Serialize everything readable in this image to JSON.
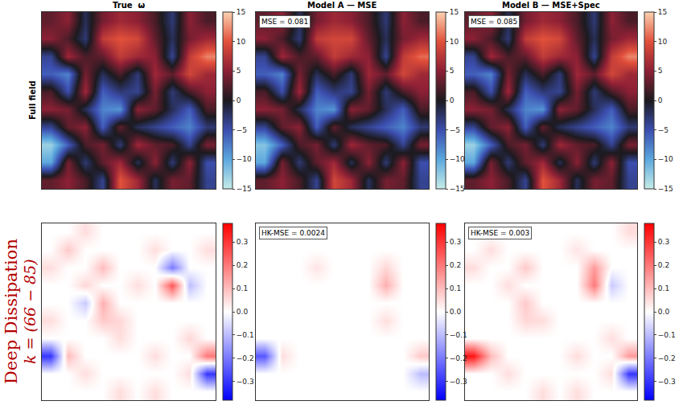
{
  "chart_data": [
    {
      "type": "heatmap",
      "title": "True  ω",
      "row_label": "Full field",
      "tick_labels": false,
      "color_range": [
        -15,
        15
      ],
      "color_ticks": [
        {
          "value": -15,
          "label": "−15"
        },
        {
          "value": -10,
          "label": "−10"
        },
        {
          "value": -5,
          "label": "−5"
        },
        0,
        5,
        10,
        15
      ],
      "cells": [
        [
          3,
          5,
          -2,
          4,
          6,
          5,
          2,
          -3,
          5,
          2
        ],
        [
          5,
          2,
          -3,
          8,
          10,
          9,
          3,
          -2,
          4,
          6
        ],
        [
          -4,
          6,
          2,
          3,
          8,
          6,
          5,
          -4,
          8,
          12
        ],
        [
          -6,
          -8,
          4,
          -2,
          2,
          -3,
          6,
          3,
          9,
          6
        ],
        [
          2,
          -5,
          6,
          -6,
          -3,
          -4,
          4,
          -3,
          2,
          5
        ],
        [
          5,
          4,
          -2,
          -8,
          -9,
          5,
          3,
          -2,
          -6,
          2
        ],
        [
          -4,
          3,
          5,
          -6,
          3,
          -2,
          -4,
          -6,
          -8,
          -3
        ],
        [
          -13,
          -6,
          2,
          4,
          -3,
          6,
          3,
          2,
          -4,
          4
        ],
        [
          -10,
          4,
          -3,
          3,
          6,
          -2,
          5,
          -3,
          5,
          -5
        ],
        [
          3,
          5,
          2,
          -4,
          10,
          6,
          -2,
          4,
          3,
          -4
        ]
      ]
    },
    {
      "type": "heatmap",
      "title": "Model A — MSE",
      "annotation": "MSE = 0.081",
      "tick_labels": false,
      "color_range": [
        -15,
        15
      ],
      "color_ticks": [
        {
          "value": -15,
          "label": "−15"
        },
        {
          "value": -10,
          "label": "−10"
        },
        {
          "value": -5,
          "label": "−5"
        },
        0,
        5,
        10,
        15
      ],
      "cells": [
        [
          3,
          5,
          -2,
          4,
          6,
          5,
          2,
          -3,
          5,
          2
        ],
        [
          5,
          2,
          -3,
          8,
          9,
          9,
          3,
          -2,
          4,
          6
        ],
        [
          -4,
          6,
          2,
          3,
          8,
          6,
          5,
          -4,
          8,
          11
        ],
        [
          -6,
          -8,
          4,
          -2,
          2,
          -3,
          6,
          3,
          9,
          6
        ],
        [
          2,
          -5,
          6,
          -6,
          -3,
          -4,
          4,
          -3,
          2,
          5
        ],
        [
          5,
          4,
          -2,
          -8,
          -9,
          5,
          3,
          -2,
          -6,
          2
        ],
        [
          -4,
          3,
          5,
          -6,
          3,
          -2,
          -4,
          -6,
          -8,
          -3
        ],
        [
          -12,
          -6,
          2,
          4,
          -3,
          6,
          3,
          2,
          -4,
          4
        ],
        [
          -10,
          4,
          -3,
          3,
          6,
          -2,
          5,
          -3,
          5,
          -5
        ],
        [
          3,
          5,
          2,
          -4,
          9,
          6,
          -2,
          4,
          3,
          -4
        ]
      ]
    },
    {
      "type": "heatmap",
      "title": "Model B — MSE+Spec",
      "annotation": "MSE = 0.085",
      "tick_labels": false,
      "color_range": [
        -15,
        15
      ],
      "color_ticks": [
        {
          "value": -15,
          "label": "−15"
        },
        {
          "value": -10,
          "label": "−10"
        },
        {
          "value": -5,
          "label": "−5"
        },
        0,
        5,
        10,
        15
      ],
      "cells": [
        [
          3,
          5,
          -2,
          4,
          6,
          5,
          2,
          -3,
          5,
          2
        ],
        [
          5,
          2,
          -3,
          8,
          10,
          9,
          3,
          -2,
          4,
          6
        ],
        [
          -4,
          6,
          2,
          3,
          8,
          6,
          5,
          -4,
          8,
          12
        ],
        [
          -6,
          -8,
          4,
          -2,
          2,
          -3,
          6,
          3,
          9,
          6
        ],
        [
          2,
          -5,
          6,
          -6,
          -3,
          -4,
          4,
          -3,
          2,
          5
        ],
        [
          5,
          4,
          -2,
          -8,
          -9,
          5,
          3,
          -2,
          -6,
          2
        ],
        [
          -4,
          3,
          5,
          -6,
          3,
          -2,
          -4,
          -6,
          -8,
          -3
        ],
        [
          -13,
          -6,
          2,
          4,
          -3,
          6,
          3,
          2,
          -4,
          4
        ],
        [
          -10,
          4,
          -3,
          3,
          6,
          -2,
          5,
          -3,
          5,
          -5
        ],
        [
          3,
          5,
          2,
          -4,
          10,
          6,
          -2,
          4,
          3,
          -4
        ]
      ]
    },
    {
      "type": "heatmap",
      "row_label": [
        "Deep Dissipation",
        "k = (66 − 85)"
      ],
      "tick_labels": false,
      "color_range": [
        -0.38,
        0.38
      ],
      "color_ticks": [
        {
          "value": -0.3,
          "label": "−0.3"
        },
        {
          "value": -0.2,
          "label": "−0.2"
        },
        {
          "value": -0.1,
          "label": "−0.1"
        },
        {
          "value": 0,
          "label": "0.0"
        },
        0.1,
        0.2,
        0.3
      ],
      "cells": [
        [
          0,
          0,
          0.05,
          0,
          0,
          0,
          0,
          0,
          0,
          0
        ],
        [
          0,
          0.08,
          0,
          0,
          0,
          0,
          0.05,
          0,
          0,
          0.05
        ],
        [
          0.05,
          0,
          0,
          0.1,
          0,
          0,
          0,
          -0.2,
          0,
          0
        ],
        [
          0,
          0,
          0.06,
          0,
          0,
          0.05,
          0,
          0.25,
          -0.1,
          0
        ],
        [
          0,
          0,
          -0.08,
          0.12,
          0,
          0,
          0,
          0,
          0,
          0
        ],
        [
          0.05,
          0,
          0,
          0.08,
          0.06,
          0,
          0,
          0,
          0,
          0
        ],
        [
          0,
          0,
          0,
          0,
          0.05,
          0,
          0,
          0,
          0.06,
          0
        ],
        [
          -0.3,
          0.1,
          0,
          0,
          0,
          0,
          0.05,
          0,
          0,
          0.2
        ],
        [
          0,
          0,
          0.05,
          0,
          0,
          0,
          0,
          0,
          0.05,
          -0.3
        ],
        [
          0,
          0,
          0,
          0,
          0.05,
          0,
          0.05,
          0,
          0,
          0
        ]
      ]
    },
    {
      "type": "heatmap",
      "annotation": "HK-MSE = 0.0024",
      "tick_labels": false,
      "color_range": [
        -0.38,
        0.38
      ],
      "color_ticks": [
        {
          "value": -0.3,
          "label": "−0.3"
        },
        {
          "value": -0.2,
          "label": "−0.2"
        },
        {
          "value": -0.1,
          "label": "−0.1"
        },
        {
          "value": 0,
          "label": "0.0"
        },
        0.1,
        0.2,
        0.3
      ],
      "cells": [
        [
          0,
          0,
          0,
          0,
          0,
          0,
          0,
          0,
          0,
          0
        ],
        [
          0,
          0,
          0,
          0,
          0,
          0,
          0,
          0,
          0,
          0
        ],
        [
          0,
          0,
          0,
          0.04,
          0,
          0,
          0,
          0.06,
          0,
          0
        ],
        [
          0,
          0,
          0,
          0,
          0,
          0,
          0,
          0.12,
          0,
          0
        ],
        [
          0,
          0,
          0,
          0,
          0,
          0,
          0,
          0,
          0,
          0
        ],
        [
          0,
          0,
          0,
          0,
          0,
          0,
          0,
          0.05,
          0,
          0
        ],
        [
          0,
          0,
          0,
          0,
          0,
          0,
          0,
          0,
          0,
          0
        ],
        [
          -0.25,
          0.05,
          0,
          0,
          0,
          0,
          0,
          0,
          0,
          0.08
        ],
        [
          0,
          0,
          0,
          0,
          0,
          0,
          0,
          0,
          0,
          -0.1
        ],
        [
          0,
          0,
          0,
          0,
          0,
          0,
          0,
          0,
          0,
          0
        ]
      ]
    },
    {
      "type": "heatmap",
      "annotation": "HK-MSE = 0.003",
      "tick_labels": false,
      "color_range": [
        -0.38,
        0.38
      ],
      "color_ticks": [
        {
          "value": -0.3,
          "label": "−0.3"
        },
        {
          "value": -0.2,
          "label": "−0.2"
        },
        {
          "value": -0.1,
          "label": "−0.1"
        },
        {
          "value": 0,
          "label": "0.0"
        },
        0.1,
        0.2,
        0.3
      ],
      "cells": [
        [
          0,
          0,
          0,
          0,
          0,
          0,
          0,
          0,
          0,
          0.05
        ],
        [
          0,
          0.05,
          0,
          0,
          0,
          0,
          0.04,
          0,
          0,
          0
        ],
        [
          0.05,
          0,
          0,
          0.08,
          0,
          0,
          0,
          0.15,
          0,
          0
        ],
        [
          0,
          0,
          0.05,
          0,
          0,
          0,
          0,
          0.2,
          -0.08,
          0
        ],
        [
          0,
          0,
          0,
          0.08,
          0,
          0,
          0,
          0,
          0,
          0
        ],
        [
          0,
          0,
          0,
          0.06,
          0.05,
          0,
          0,
          0,
          0,
          0
        ],
        [
          0,
          0,
          0,
          0,
          0,
          0,
          0,
          0,
          0.05,
          0
        ],
        [
          0.35,
          0.1,
          0,
          0,
          0,
          0,
          0.05,
          0,
          0,
          0.15
        ],
        [
          0,
          0,
          0.05,
          0,
          0,
          0,
          0,
          0,
          0.05,
          -0.3
        ],
        [
          0,
          0,
          0,
          0,
          0.05,
          0,
          0.05,
          0,
          0,
          0
        ]
      ]
    }
  ]
}
